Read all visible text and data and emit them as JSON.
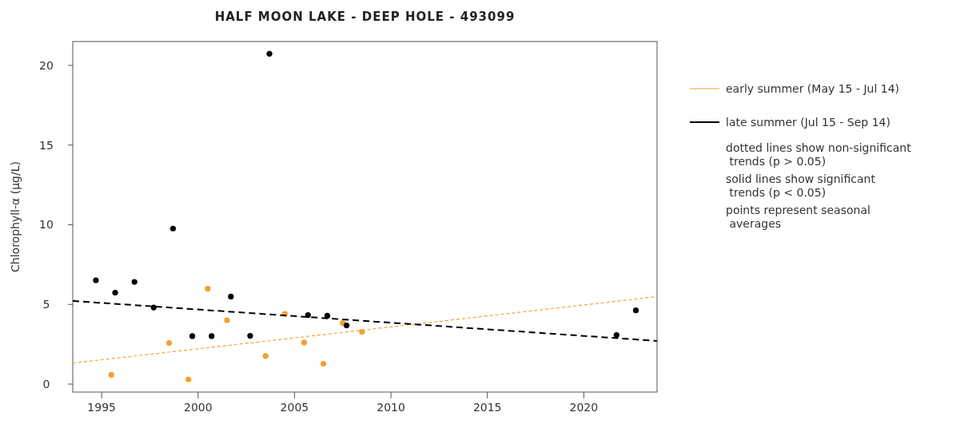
{
  "chart_data": {
    "type": "scatter",
    "title": "HALF MOON LAKE - DEEP HOLE - 493099",
    "ylabel": "Chlorophyll-α (µg/L)",
    "xlim": [
      1993.5,
      2023.8
    ],
    "xticks": [
      1995,
      2000,
      2005,
      2010,
      2015,
      2020
    ],
    "ylim": [
      -0.5,
      21.5
    ],
    "yticks": [
      0,
      5,
      10,
      15,
      20
    ],
    "grid": false,
    "legend": "right",
    "series": [
      {
        "marker": "circle",
        "color": "#f5a030",
        "x": [
          1995.5,
          1998.5,
          1999.5,
          2000.5,
          2001.5,
          2003.5,
          2004.5,
          2005.5,
          2006.5,
          2007.5,
          2008.5
        ],
        "values": [
          0.58,
          2.58,
          0.29,
          5.99,
          4.01,
          1.76,
          4.41,
          2.61,
          1.28,
          3.83,
          3.28
        ]
      },
      {
        "marker": "circle",
        "color": "#000000",
        "x": [
          1994.7,
          1995.7,
          1996.7,
          1997.7,
          1998.7,
          1999.7,
          2000.7,
          2001.7,
          2002.7,
          2003.7,
          2005.7,
          2006.7,
          2007.7,
          2021.7,
          2022.7
        ],
        "values": [
          6.51,
          5.74,
          6.41,
          4.81,
          9.76,
          3.01,
          3.01,
          5.49,
          3.03,
          20.73,
          4.33,
          4.29,
          3.68,
          3.08,
          4.63
        ]
      },
      {
        "type": "line",
        "name": "early summer (May 15 - Jul 14)",
        "color": "#f5a030",
        "marker": "none",
        "line_style": "dashed",
        "x": [
          1993.5,
          2023.8
        ],
        "values": [
          1.32,
          5.49
        ]
      },
      {
        "type": "line",
        "name": "late summer (Jul 15 - Sep 14)",
        "color": "#000000",
        "marker": "none",
        "line_style": "dashed",
        "x": [
          1993.5,
          2023.8
        ],
        "values": [
          5.22,
          2.71
        ]
      }
    ],
    "annotations": [
      "dotted lines show non-significant\n trends (p > 0.05)",
      "solid lines show significant\n trends (p < 0.05)",
      "points represent seasonal\n averages"
    ]
  }
}
